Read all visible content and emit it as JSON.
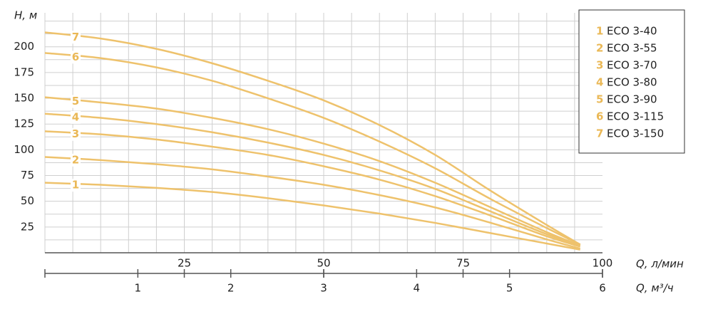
{
  "chart_data": {
    "type": "line",
    "y_label": "H, м",
    "x_label": "Q, л/мин",
    "x2_label": "Q, м³/ч",
    "x": [
      0,
      10,
      20,
      30,
      40,
      50,
      60,
      70,
      80,
      90,
      96
    ],
    "xlim": [
      0,
      100
    ],
    "xticks": [
      25,
      50,
      75,
      100
    ],
    "x2lim": [
      0,
      6
    ],
    "x2ticks": [
      1,
      2,
      3,
      4,
      5,
      6
    ],
    "ylim": [
      0,
      233
    ],
    "yticks": [
      25,
      50,
      75,
      100,
      125,
      150,
      175,
      200
    ],
    "xgrid": [
      5,
      10,
      15,
      20,
      25,
      30,
      35,
      40,
      45,
      50,
      55,
      60,
      65,
      70,
      75,
      80,
      85,
      90,
      95
    ],
    "ygrid": [
      12.5,
      25,
      37.5,
      50,
      62.5,
      75,
      87.5,
      100,
      112.5,
      125,
      137.5,
      150,
      162.5,
      175,
      187.5,
      200,
      212.5,
      225
    ],
    "color": "#eec26c",
    "legend": "upper right",
    "series": [
      {
        "label": "1",
        "name": "ECO 3-40",
        "values": [
          68,
          66,
          63,
          59,
          53,
          46,
          38,
          29,
          19,
          9,
          3
        ]
      },
      {
        "label": "2",
        "name": "ECO 3-55",
        "values": [
          93,
          90,
          86,
          81,
          74,
          66,
          56,
          44,
          29,
          13,
          4
        ]
      },
      {
        "label": "3",
        "name": "ECO 3-70",
        "values": [
          118,
          115,
          110,
          103,
          95,
          84,
          71,
          55,
          36,
          16,
          6
        ]
      },
      {
        "label": "4",
        "name": "ECO 3-80",
        "values": [
          135,
          131,
          125,
          117,
          107,
          95,
          80,
          62,
          40,
          18,
          7
        ]
      },
      {
        "label": "5",
        "name": "ECO 3-90",
        "values": [
          151,
          146,
          140,
          131,
          120,
          106,
          89,
          68,
          44,
          20,
          7
        ]
      },
      {
        "label": "6",
        "name": "ECO 3-115",
        "values": [
          194,
          189,
          180,
          167,
          150,
          131,
          108,
          82,
          52,
          24,
          8
        ]
      },
      {
        "label": "7",
        "name": "ECO 3-150",
        "values": [
          214,
          208,
          198,
          184,
          167,
          148,
          124,
          95,
          60,
          27,
          8
        ]
      }
    ]
  }
}
